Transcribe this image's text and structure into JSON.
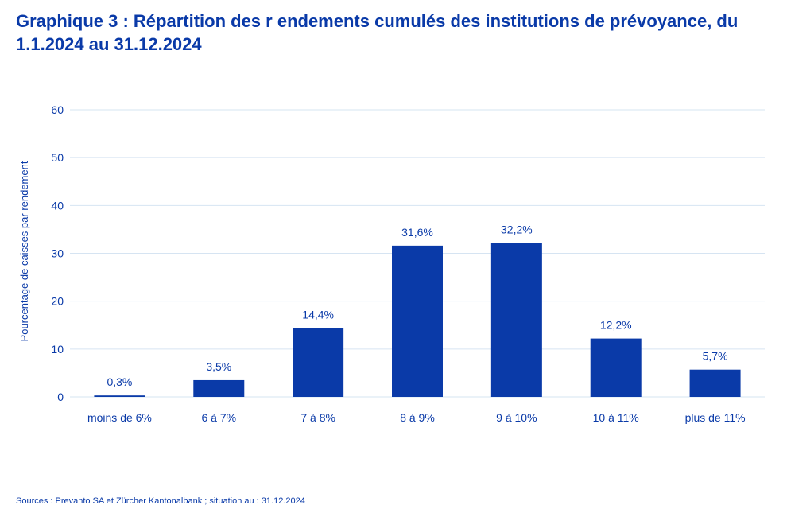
{
  "chart_data": {
    "type": "bar",
    "title": "Graphique 3 : Répartition des r endements cumulés des institutions de prévoyance, du 1.1.2024 au 31.12.2024",
    "xlabel": "",
    "ylabel": "Pourcentage de caisses par rendement",
    "ylim": [
      0,
      60
    ],
    "yticks": [
      "0",
      "10",
      "20",
      "30",
      "40",
      "50",
      "60"
    ],
    "grid": true,
    "categories": [
      "moins de 6%",
      "6 à 7%",
      "7 à 8%",
      "8 à 9%",
      "9 à 10%",
      "10 à 11%",
      "plus de 11%"
    ],
    "values": [
      0.3,
      3.5,
      14.4,
      31.6,
      32.2,
      12.2,
      5.7
    ],
    "data_labels": [
      "0,3%",
      "3,5%",
      "14,4%",
      "31,6%",
      "32,2%",
      "12,2%",
      "5,7%"
    ],
    "bar_color": "#0a3aa8",
    "grid_color": "#d6e4f2"
  },
  "source": "Sources : Prevanto SA et Zürcher Kantonalbank ; situation au : 31.12.2024"
}
